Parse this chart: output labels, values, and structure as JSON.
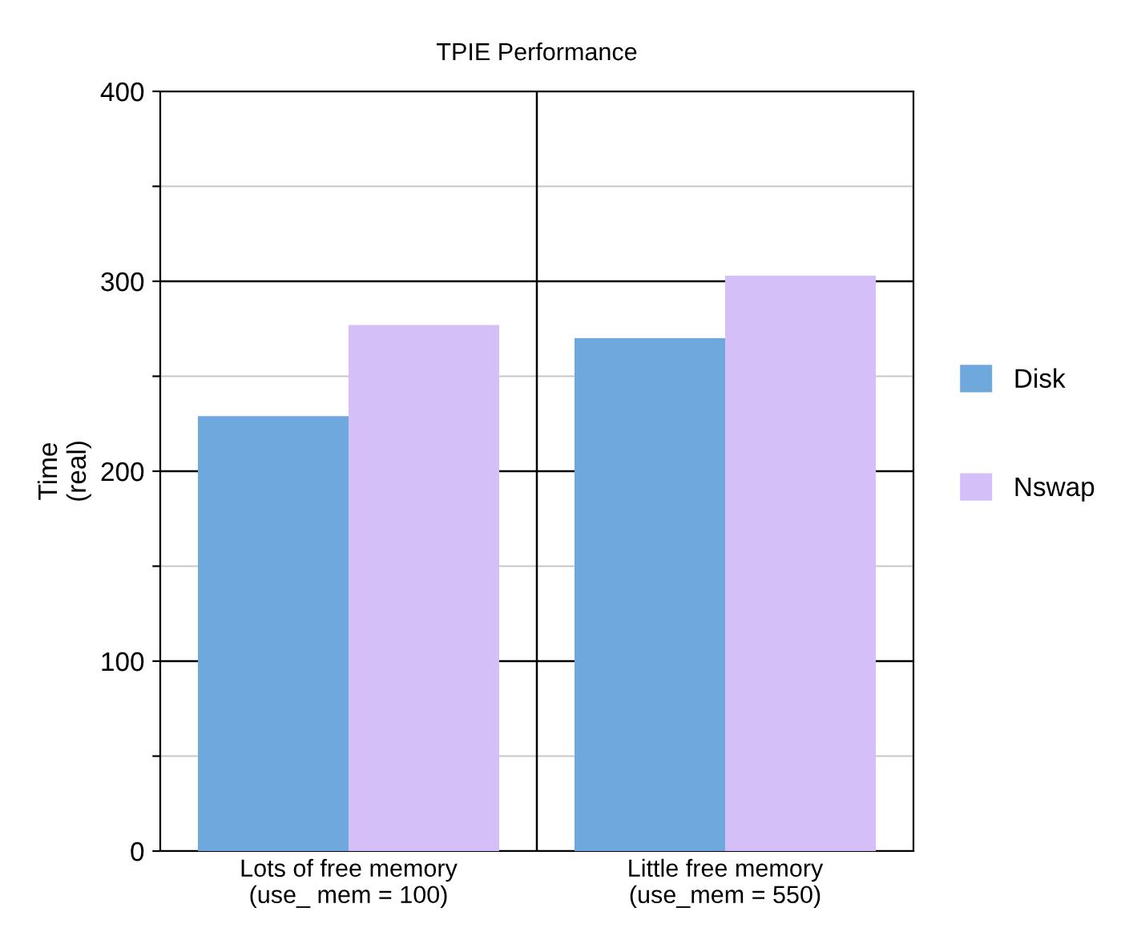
{
  "chart_data": {
    "type": "bar",
    "title": "TPIE Performance",
    "ylabel": "Time\n(real)",
    "categories": [
      "Lots of free memory\n(use_ mem = 100)",
      "Little free memory\n(use_mem = 550)"
    ],
    "series": [
      {
        "name": "Disk",
        "color": "#6fa8dc",
        "values": [
          229,
          270
        ]
      },
      {
        "name": "Nswap",
        "color": "#d4bff8",
        "values": [
          277,
          303
        ]
      }
    ],
    "ylim": [
      0,
      400
    ],
    "yticks": [
      0,
      {
        "value": 50,
        "label": null
      },
      100,
      {
        "value": 150,
        "label": null
      },
      200,
      {
        "value": 250,
        "label": null
      },
      300,
      {
        "value": 350,
        "label": null
      },
      400
    ],
    "grid": true,
    "legend": "right"
  }
}
